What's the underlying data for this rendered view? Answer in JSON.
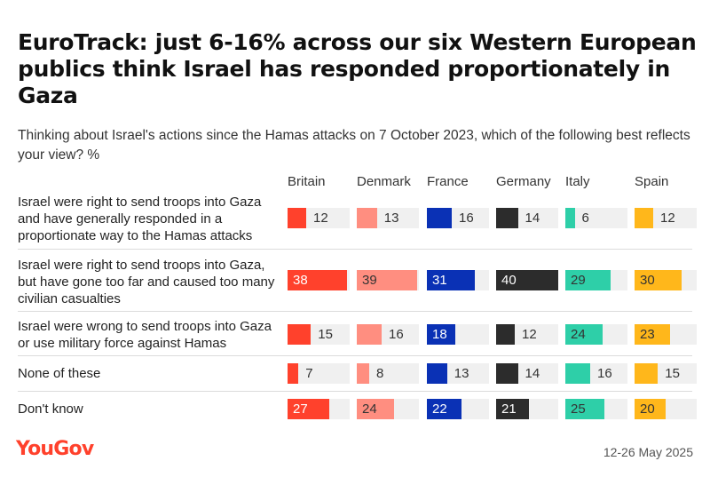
{
  "header": {
    "title": "EuroTrack: just 6-16% across our six Western European publics think Israel has responded proportionately in Gaza",
    "subtitle": "Thinking about Israel's actions since the Hamas attacks on 7 October 2023, which of the following best reflects your view? %"
  },
  "footer": {
    "logo": "YouGov",
    "date": "12-26 May 2025"
  },
  "chart_data": {
    "type": "bar",
    "title": "EuroTrack: just 6-16% across our six Western European publics think Israel has responded proportionately in Gaza",
    "subtitle": "Thinking about Israel's actions since the Hamas attacks on 7 October 2023, which of the following best reflects your view? %",
    "categories": [
      "Israel were right to send troops into Gaza and have generally responded in a proportionate way to the Hamas attacks",
      "Israel were right to send troops into Gaza, but have gone too far and caused too many civilian casualties",
      "Israel were wrong to send troops into Gaza or use military force against Hamas",
      "None of these",
      "Don't know"
    ],
    "series": [
      {
        "name": "Britain",
        "color": "#ff412c",
        "values": [
          12,
          38,
          15,
          7,
          27
        ]
      },
      {
        "name": "Denmark",
        "color": "#ff8e80",
        "values": [
          13,
          39,
          16,
          8,
          24
        ]
      },
      {
        "name": "France",
        "color": "#0a31b5",
        "values": [
          16,
          31,
          18,
          13,
          22
        ]
      },
      {
        "name": "Germany",
        "color": "#2c2c2c",
        "values": [
          14,
          40,
          12,
          14,
          21
        ]
      },
      {
        "name": "Italy",
        "color": "#2ecfa8",
        "values": [
          6,
          29,
          24,
          16,
          25
        ]
      },
      {
        "name": "Spain",
        "color": "#ffb71b",
        "values": [
          12,
          30,
          23,
          15,
          20
        ]
      }
    ],
    "xlim": [
      0,
      40
    ],
    "legend": "top"
  }
}
